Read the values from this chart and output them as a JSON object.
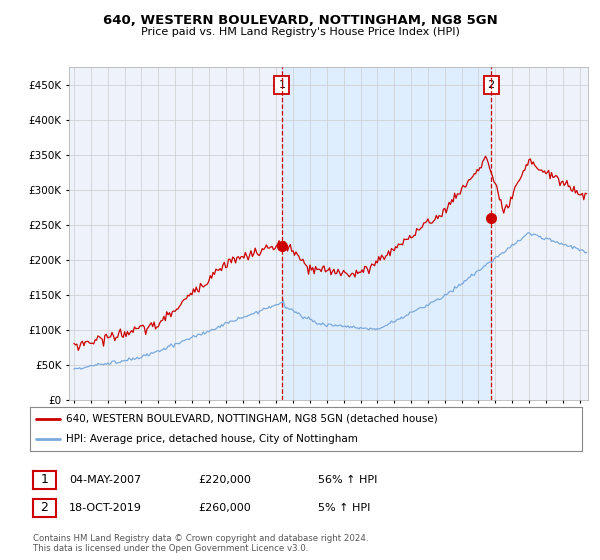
{
  "title": "640, WESTERN BOULEVARD, NOTTINGHAM, NG8 5GN",
  "subtitle": "Price paid vs. HM Land Registry's House Price Index (HPI)",
  "legend_label_red": "640, WESTERN BOULEVARD, NOTTINGHAM, NG8 5GN (detached house)",
  "legend_label_blue": "HPI: Average price, detached house, City of Nottingham",
  "annotation1_date": "04-MAY-2007",
  "annotation1_price": "£220,000",
  "annotation1_hpi": "56% ↑ HPI",
  "annotation2_date": "18-OCT-2019",
  "annotation2_price": "£260,000",
  "annotation2_hpi": "5% ↑ HPI",
  "footer": "Contains HM Land Registry data © Crown copyright and database right 2024.\nThis data is licensed under the Open Government Licence v3.0.",
  "ylim": [
    0,
    475000
  ],
  "yticks": [
    0,
    50000,
    100000,
    150000,
    200000,
    250000,
    300000,
    350000,
    400000,
    450000
  ],
  "color_red": "#cc0000",
  "color_blue": "#7aaadd",
  "color_vline": "#cc0000",
  "shade_color": "#ddeeff",
  "plot_bg": "#eef3fb",
  "grid_color": "#cccccc",
  "sale1_t": 2007.333,
  "sale1_price": 220000,
  "sale2_t": 2019.75,
  "sale2_price": 260000
}
